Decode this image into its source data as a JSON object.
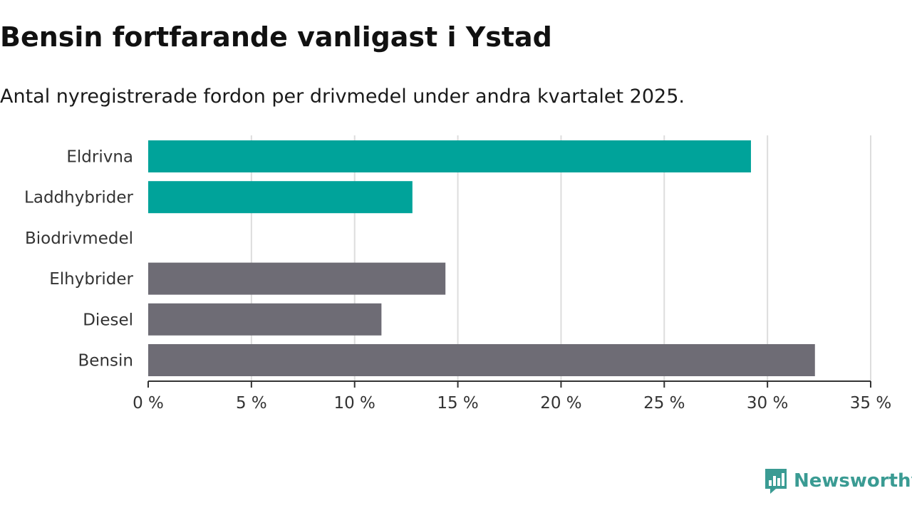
{
  "title": "Bensin fortfarande vanligast i Ystad",
  "subtitle": "Antal nyregistrerade fordon per drivmedel under andra kvartalet 2025.",
  "colors": {
    "green": "#00a39a",
    "gray": "#6e6c75",
    "grid": "#dddddd",
    "axis": "#333333",
    "brand": "#3a9b93"
  },
  "chart_data": {
    "type": "bar",
    "orientation": "horizontal",
    "categories": [
      "Eldrivna",
      "Laddhybrider",
      "Biodrivmedel",
      "Elhybrider",
      "Diesel",
      "Bensin"
    ],
    "values": [
      29.2,
      12.8,
      0,
      14.4,
      11.3,
      32.3
    ],
    "bar_colors": [
      "green",
      "green",
      "gray",
      "gray",
      "gray",
      "gray"
    ],
    "xlim": [
      0,
      35
    ],
    "xticks": [
      0,
      5,
      10,
      15,
      20,
      25,
      30,
      35
    ],
    "xtick_labels": [
      "0 %",
      "5 %",
      "10 %",
      "15 %",
      "20 %",
      "25 %",
      "30 %",
      "35 %"
    ],
    "unit": "%",
    "grid": true
  },
  "brand": {
    "name": "Newsworthy",
    "icon": "newsworthy-logo-icon"
  }
}
